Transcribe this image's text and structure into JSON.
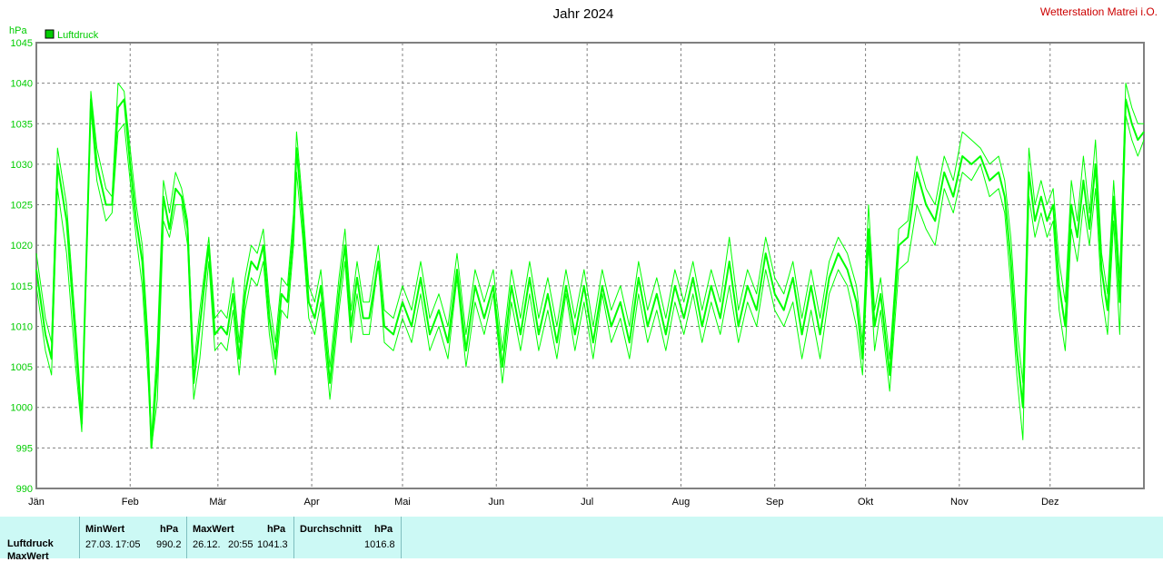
{
  "chart_data": {
    "type": "line",
    "title": "Jahr 2024",
    "station": "Wetterstation Matrei i.O.",
    "ylabel": "hPa",
    "ylim": [
      990,
      1045
    ],
    "yticks": [
      990,
      995,
      1000,
      1005,
      1010,
      1015,
      1020,
      1025,
      1030,
      1035,
      1040,
      1045
    ],
    "xlim_days": [
      0,
      366
    ],
    "months": [
      "Jän",
      "Feb",
      "Mär",
      "Apr",
      "Mai",
      "Jun",
      "Jul",
      "Aug",
      "Sep",
      "Okt",
      "Nov",
      "Dez"
    ],
    "month_start_days": [
      0,
      31,
      60,
      91,
      121,
      152,
      182,
      213,
      244,
      274,
      305,
      335
    ],
    "grid": true,
    "legend": {
      "position": "top-left",
      "entries": [
        "Luftdruck"
      ]
    },
    "colors": {
      "series": "#00ff00",
      "axis_text": "#00cc00",
      "station": "#cc0000"
    },
    "series": [
      {
        "name": "Luftdruck",
        "x": [
          0,
          3,
          5,
          7,
          10,
          13,
          15,
          18,
          20,
          23,
          25,
          27,
          29,
          31,
          33,
          35,
          37,
          38,
          40,
          42,
          44,
          46,
          48,
          50,
          52,
          54,
          57,
          59,
          61,
          63,
          65,
          67,
          69,
          71,
          73,
          75,
          77,
          79,
          81,
          83,
          85,
          86,
          88,
          90,
          92,
          94,
          97,
          100,
          102,
          104,
          106,
          108,
          110,
          113,
          115,
          118,
          121,
          124,
          127,
          130,
          133,
          136,
          139,
          142,
          145,
          148,
          151,
          154,
          157,
          160,
          163,
          166,
          169,
          172,
          175,
          178,
          181,
          184,
          187,
          190,
          193,
          196,
          199,
          202,
          205,
          208,
          211,
          214,
          217,
          220,
          223,
          226,
          229,
          232,
          235,
          238,
          241,
          244,
          247,
          250,
          253,
          256,
          259,
          262,
          265,
          268,
          271,
          273,
          275,
          277,
          279,
          282,
          285,
          288,
          291,
          294,
          297,
          300,
          303,
          306,
          309,
          312,
          315,
          318,
          320,
          322,
          324,
          326,
          328,
          330,
          332,
          334,
          336,
          338,
          340,
          342,
          344,
          346,
          348,
          350,
          352,
          354,
          356,
          358,
          360,
          362,
          364,
          366
        ],
        "min": [
          1015,
          1007,
          1004,
          1027,
          1019,
          1005,
          997,
          1037,
          1028,
          1023,
          1024,
          1034,
          1035,
          1028,
          1021,
          1015,
          1003,
          995,
          1001,
          1023,
          1021,
          1025,
          1025,
          1020,
          1001,
          1006,
          1018,
          1007,
          1008,
          1007,
          1012,
          1004,
          1012,
          1016,
          1015,
          1018,
          1009,
          1004,
          1012,
          1011,
          1020,
          1029,
          1021,
          1011,
          1009,
          1013,
          1001,
          1012,
          1018,
          1008,
          1014,
          1009,
          1009,
          1018,
          1008,
          1007,
          1011,
          1008,
          1014,
          1007,
          1010,
          1006,
          1016,
          1005,
          1013,
          1009,
          1014,
          1003,
          1013,
          1007,
          1014,
          1007,
          1012,
          1006,
          1014,
          1007,
          1013,
          1006,
          1014,
          1008,
          1011,
          1006,
          1014,
          1008,
          1012,
          1007,
          1013,
          1009,
          1014,
          1008,
          1013,
          1009,
          1015,
          1008,
          1013,
          1010,
          1017,
          1012,
          1010,
          1013,
          1006,
          1012,
          1006,
          1014,
          1017,
          1015,
          1010,
          1004,
          1020,
          1007,
          1012,
          1002,
          1017,
          1018,
          1025,
          1022,
          1020,
          1027,
          1024,
          1029,
          1028,
          1030,
          1026,
          1027,
          1024,
          1015,
          1004,
          996,
          1026,
          1021,
          1024,
          1021,
          1023,
          1012,
          1007,
          1022,
          1018,
          1025,
          1020,
          1027,
          1014,
          1009,
          1023,
          1009,
          1036,
          1033,
          1031,
          1033
        ],
        "avg": [
          1017,
          1009,
          1006,
          1030,
          1023,
          1008,
          998,
          1038,
          1030,
          1025,
          1025,
          1037,
          1038,
          1030,
          1023,
          1018,
          1006,
          995,
          1005,
          1026,
          1022,
          1027,
          1026,
          1022,
          1003,
          1010,
          1020,
          1009,
          1010,
          1009,
          1014,
          1006,
          1014,
          1018,
          1017,
          1020,
          1011,
          1006,
          1014,
          1013,
          1022,
          1032,
          1023,
          1013,
          1011,
          1015,
          1003,
          1014,
          1020,
          1010,
          1016,
          1011,
          1011,
          1018,
          1010,
          1009,
          1013,
          1010,
          1016,
          1009,
          1012,
          1008,
          1017,
          1007,
          1015,
          1011,
          1015,
          1005,
          1015,
          1009,
          1016,
          1009,
          1014,
          1008,
          1015,
          1009,
          1015,
          1008,
          1015,
          1010,
          1013,
          1008,
          1016,
          1010,
          1014,
          1009,
          1015,
          1011,
          1016,
          1010,
          1015,
          1011,
          1018,
          1010,
          1015,
          1012,
          1019,
          1014,
          1012,
          1016,
          1009,
          1015,
          1009,
          1016,
          1019,
          1017,
          1013,
          1006,
          1022,
          1010,
          1014,
          1004,
          1020,
          1021,
          1029,
          1025,
          1023,
          1029,
          1026,
          1031,
          1030,
          1031,
          1028,
          1029,
          1026,
          1018,
          1007,
          1000,
          1029,
          1023,
          1026,
          1023,
          1025,
          1015,
          1010,
          1025,
          1021,
          1028,
          1022,
          1030,
          1017,
          1012,
          1026,
          1013,
          1038,
          1035,
          1033,
          1034
        ],
        "max": [
          1019,
          1011,
          1008,
          1032,
          1025,
          1010,
          999,
          1039,
          1032,
          1027,
          1026,
          1040,
          1039,
          1032,
          1025,
          1020,
          1008,
          996,
          1008,
          1028,
          1024,
          1029,
          1027,
          1023,
          1005,
          1012,
          1021,
          1011,
          1012,
          1011,
          1016,
          1008,
          1016,
          1020,
          1019,
          1022,
          1013,
          1008,
          1016,
          1015,
          1024,
          1034,
          1025,
          1015,
          1013,
          1017,
          1005,
          1016,
          1022,
          1012,
          1018,
          1013,
          1013,
          1020,
          1012,
          1011,
          1015,
          1012,
          1018,
          1011,
          1014,
          1010,
          1019,
          1009,
          1017,
          1013,
          1017,
          1007,
          1017,
          1011,
          1018,
          1011,
          1016,
          1010,
          1017,
          1011,
          1017,
          1010,
          1017,
          1012,
          1015,
          1010,
          1018,
          1012,
          1016,
          1011,
          1017,
          1013,
          1018,
          1012,
          1017,
          1013,
          1021,
          1012,
          1017,
          1014,
          1021,
          1016,
          1014,
          1018,
          1011,
          1017,
          1011,
          1018,
          1021,
          1019,
          1015,
          1008,
          1025,
          1012,
          1016,
          1006,
          1022,
          1023,
          1031,
          1027,
          1025,
          1031,
          1028,
          1034,
          1033,
          1032,
          1030,
          1031,
          1028,
          1021,
          1010,
          1003,
          1032,
          1025,
          1028,
          1025,
          1027,
          1018,
          1013,
          1028,
          1023,
          1031,
          1024,
          1033,
          1019,
          1014,
          1028,
          1016,
          1040,
          1037,
          1035,
          1035
        ]
      }
    ]
  },
  "stats": {
    "row_label": "Luftdruck",
    "row_label_2": "MaxWert",
    "min": {
      "header": "MinWert",
      "unit": "hPa",
      "date": "27.03.",
      "time": "17:05",
      "value": "990.2"
    },
    "max": {
      "header": "MaxWert",
      "unit": "hPa",
      "date": "26.12.",
      "time": "20:55",
      "value": "1041.3"
    },
    "avg": {
      "header": "Durchschnitt",
      "unit": "hPa",
      "value": "1016.8"
    }
  }
}
